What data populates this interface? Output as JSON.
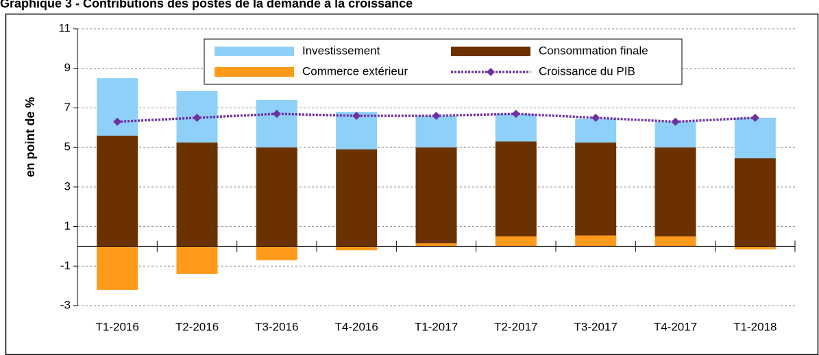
{
  "chart_data": {
    "type": "bar",
    "title": "Graphique 3 - Contributions des postes de la demande à la croissance",
    "y_label": "en point de %",
    "categories": [
      "T1-2016",
      "T2-2016",
      "T3-2016",
      "T4-2016",
      "T1-2017",
      "T2-2017",
      "T3-2017",
      "T4-2017",
      "T1-2018"
    ],
    "series": [
      {
        "name": "Commerce extérieur",
        "type": "bar",
        "color": "#ff9a1a",
        "values": [
          -2.2,
          -1.4,
          -0.7,
          -0.2,
          0.15,
          0.5,
          0.55,
          0.5,
          -0.15
        ]
      },
      {
        "name": "Consommation finale",
        "type": "bar",
        "color": "#6b3200",
        "values": [
          5.6,
          5.25,
          5.0,
          4.9,
          4.85,
          4.8,
          4.7,
          4.5,
          4.45
        ]
      },
      {
        "name": "Investissement",
        "type": "bar",
        "color": "#8fd0f8",
        "values": [
          2.9,
          2.6,
          2.4,
          1.9,
          1.6,
          1.4,
          1.2,
          1.3,
          2.05
        ]
      },
      {
        "name": "Croissance du PIB",
        "type": "line",
        "color": "#7030a0",
        "values": [
          6.3,
          6.5,
          6.7,
          6.6,
          6.6,
          6.7,
          6.5,
          6.3,
          6.5
        ]
      }
    ],
    "ylim": [
      -3,
      11
    ],
    "yticks": [
      -3,
      -1,
      1,
      3,
      5,
      7,
      9,
      11
    ],
    "grid": true,
    "legend": "top"
  }
}
